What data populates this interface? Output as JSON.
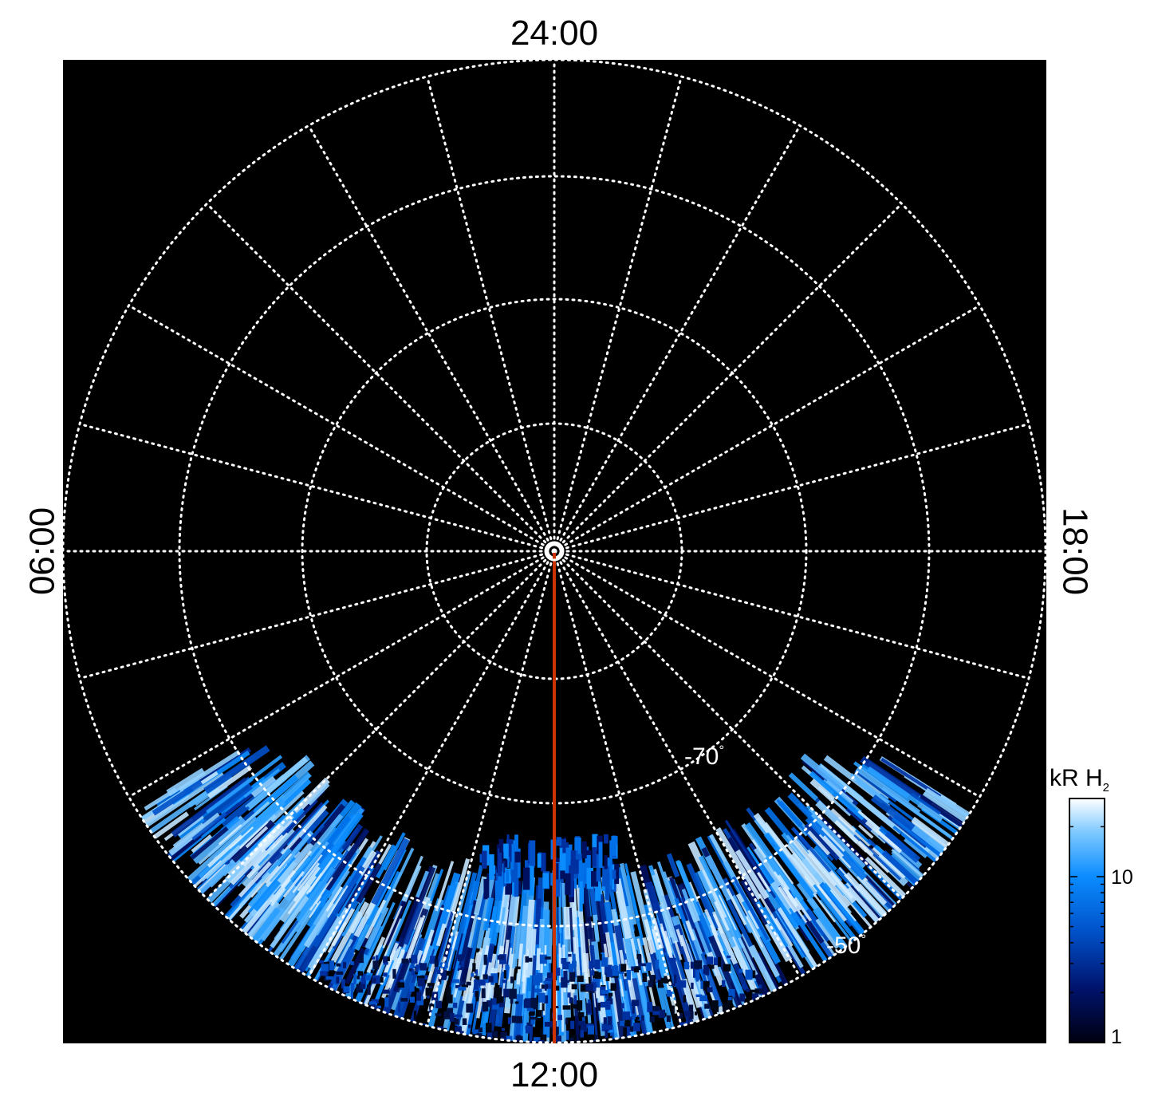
{
  "projection": {
    "type": "polar-stereographic",
    "hemisphere": "south",
    "local_time_labels": {
      "top": "24:00",
      "bottom": "12:00",
      "left": "06:00",
      "right": "18:00"
    },
    "latitude_labels": [
      {
        "value": "-70",
        "unit": "°"
      },
      {
        "value": "-50",
        "unit": "°"
      }
    ],
    "background_color": "#000000",
    "grid_color": "#ffffff",
    "meridian_color": "#cc3300"
  },
  "colorbar": {
    "title_main": "kR H",
    "title_sub": "2",
    "ticks": [
      "10",
      "1"
    ],
    "scale": "log",
    "colors": [
      "#000010",
      "#00126b",
      "#0050c8",
      "#0a8cff",
      "#7cc8ff",
      "#ffffff"
    ]
  }
}
